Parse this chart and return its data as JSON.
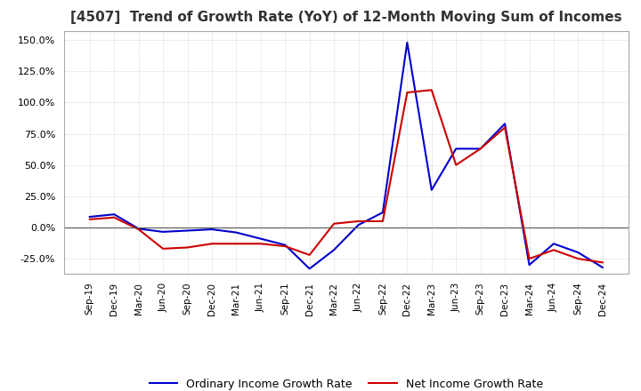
{
  "title": "[4507]  Trend of Growth Rate (YoY) of 12-Month Moving Sum of Incomes",
  "title_fontsize": 11,
  "ylim": [
    -37,
    157
  ],
  "yticks": [
    -25,
    0,
    25,
    50,
    75,
    100,
    125,
    150
  ],
  "background_color": "#ffffff",
  "grid_color": "#aaaaaa",
  "legend_labels": [
    "Ordinary Income Growth Rate",
    "Net Income Growth Rate"
  ],
  "line_colors": [
    "#0000cc",
    "#cc0000"
  ],
  "dates": [
    "Sep-19",
    "Dec-19",
    "Mar-20",
    "Jun-20",
    "Sep-20",
    "Dec-20",
    "Mar-21",
    "Jun-21",
    "Sep-21",
    "Dec-21",
    "Mar-22",
    "Jun-22",
    "Sep-22",
    "Dec-22",
    "Mar-23",
    "Jun-23",
    "Sep-23",
    "Dec-23",
    "Mar-24",
    "Jun-24",
    "Sep-24",
    "Dec-24"
  ],
  "ordinary_income_gr": [
    8.5,
    10.5,
    -1.0,
    -3.5,
    -2.5,
    -1.5,
    -4.0,
    -9.0,
    -14.0,
    -33.0,
    -18.0,
    2.0,
    12.0,
    148.0,
    30.0,
    63.0,
    63.0,
    83.0,
    -30.0,
    -13.0,
    -20.0,
    -32.0
  ],
  "net_income_gr": [
    6.5,
    8.0,
    -1.5,
    -17.0,
    -16.0,
    -13.0,
    -13.0,
    -13.0,
    -15.0,
    -22.0,
    3.0,
    5.0,
    5.0,
    108.0,
    110.0,
    50.0,
    63.0,
    80.0,
    -25.0,
    -18.0,
    -25.0,
    -28.0
  ]
}
